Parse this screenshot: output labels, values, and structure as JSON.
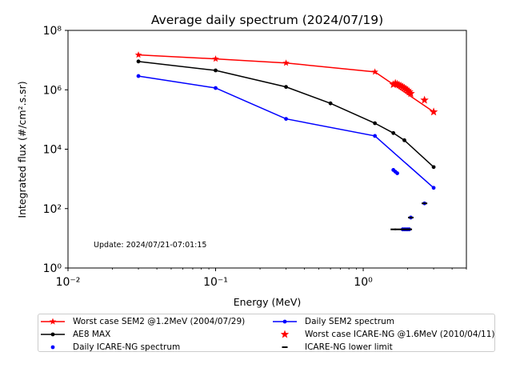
{
  "chart_data": {
    "type": "scatter",
    "title": "Average daily spectrum (2024/07/19)",
    "xlabel": "Energy (MeV)",
    "ylabel": "Integrated flux (#/cm².s.sr)",
    "xscale": "log",
    "yscale": "log",
    "xlim": [
      0.01,
      5
    ],
    "ylim": [
      1,
      100000000
    ],
    "xticks": [
      {
        "value": 0.01,
        "label": "10⁻²"
      },
      {
        "value": 0.1,
        "label": "10⁻¹"
      },
      {
        "value": 1,
        "label": "10⁰"
      }
    ],
    "yticks": [
      {
        "value": 1,
        "label": "10⁰"
      },
      {
        "value": 100,
        "label": "10²"
      },
      {
        "value": 10000,
        "label": "10⁴"
      },
      {
        "value": 1000000,
        "label": "10⁶"
      },
      {
        "value": 100000000,
        "label": "10⁸"
      }
    ],
    "grid": false,
    "annotation": "Update: 2024/07/21-07:01:15",
    "legend_position": "below",
    "series": [
      {
        "name": "Worst case SEM2 @1.2MeV (2004/07/29)",
        "style": "line",
        "marker": "star",
        "color": "#ff0000",
        "x": [
          0.03,
          0.1,
          0.3,
          1.2,
          3.0
        ],
        "y": [
          15000000,
          11000000,
          8000000,
          4000000,
          180000
        ]
      },
      {
        "name": "Daily SEM2 spectrum",
        "style": "line",
        "marker": "dot",
        "color": "#0000ff",
        "x": [
          0.03,
          0.1,
          0.3,
          1.2,
          3.0
        ],
        "y": [
          2900000,
          1150000,
          105000,
          28000,
          500
        ]
      },
      {
        "name": "AE8 MAX",
        "style": "line",
        "marker": "dot",
        "color": "#000000",
        "x": [
          0.03,
          0.1,
          0.3,
          0.6,
          1.2,
          1.6,
          1.9,
          3.0
        ],
        "y": [
          9000000,
          4500000,
          1250000,
          350000,
          75000,
          35000,
          20000,
          2500
        ]
      },
      {
        "name": "Worst case ICARE-NG @1.6MeV (2010/04/11)",
        "style": "scatter",
        "marker": "star",
        "color": "#ff0000",
        "x": [
          1.6,
          1.65,
          1.7,
          1.75,
          1.8,
          1.85,
          1.9,
          1.95,
          2.0,
          2.05,
          2.1,
          2.6,
          3.0
        ],
        "y": [
          1500000,
          1650000,
          1550000,
          1450000,
          1350000,
          1250000,
          1150000,
          1050000,
          950000,
          850000,
          750000,
          450000,
          180000
        ]
      },
      {
        "name": "Daily ICARE-NG spectrum",
        "style": "scatter",
        "marker": "dot",
        "color": "#0000ff",
        "x": [
          1.6,
          1.65,
          1.7,
          1.85,
          1.9,
          1.95,
          2.0,
          2.05,
          2.1,
          2.6
        ],
        "y": [
          2000,
          1750,
          1550,
          20,
          20,
          20,
          20,
          20,
          50,
          150
        ]
      },
      {
        "name": "ICARE-NG lower limit",
        "style": "scatter",
        "marker": "dash",
        "color": "#000000",
        "x": [
          1.6,
          1.7,
          1.85,
          1.9,
          1.95,
          2.0,
          2.05,
          2.1,
          2.6
        ],
        "y": [
          20,
          20,
          20,
          20,
          20,
          20,
          20,
          50,
          150
        ]
      }
    ]
  }
}
